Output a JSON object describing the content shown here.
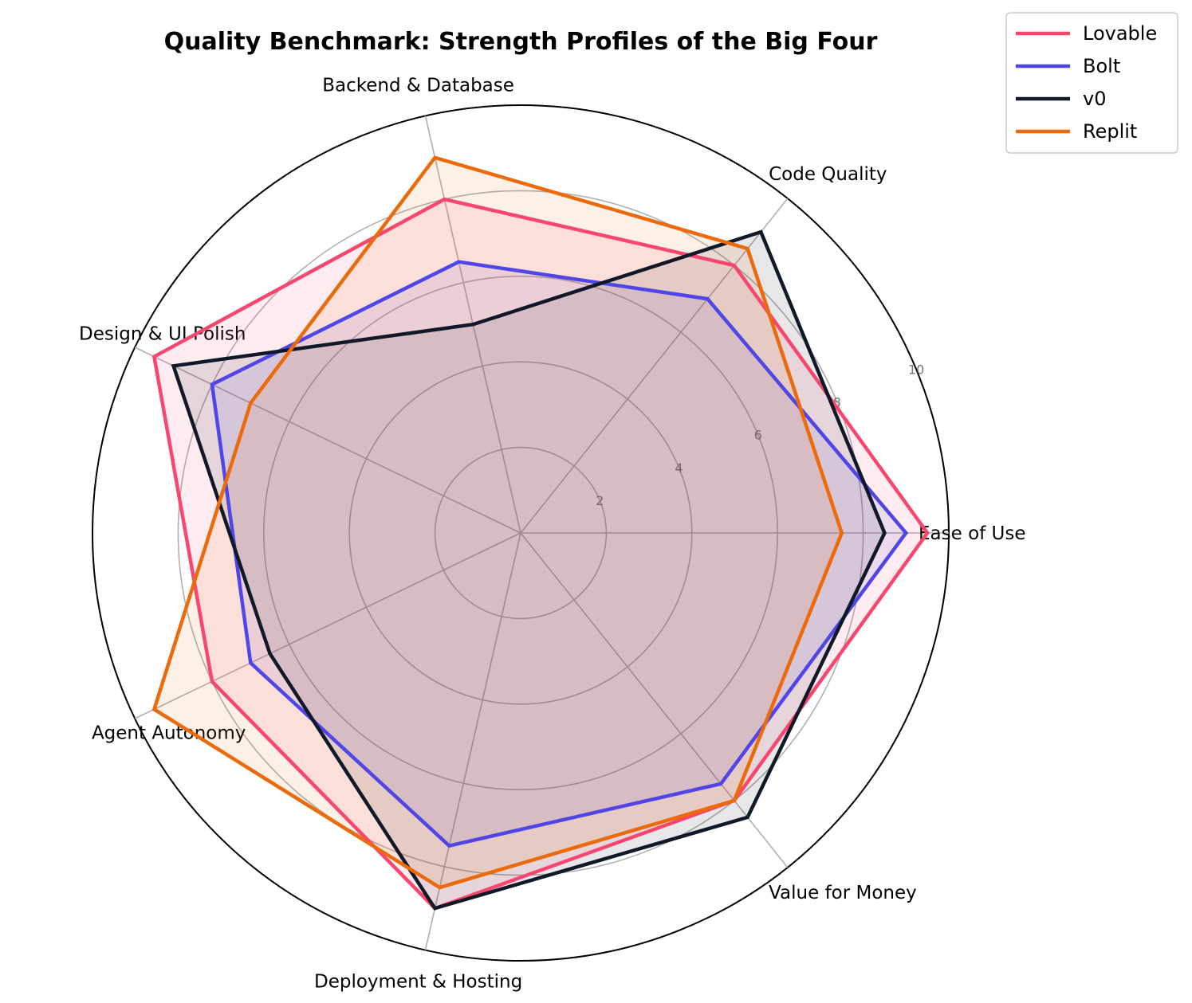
{
  "chart_data": {
    "type": "radar",
    "title": "Quality Benchmark: Strength Profiles of the Big Four",
    "axes": [
      "Ease of Use",
      "Code Quality",
      "Backend & Database",
      "Design & UI Polish",
      "Agent Autonomy",
      "Deployment & Hosting",
      "Value for Money"
    ],
    "r_range": [
      0,
      10
    ],
    "r_ticks": [
      "2",
      "4",
      "6",
      "8",
      "10"
    ],
    "grid": true,
    "legend_position": "top-right",
    "series": [
      {
        "name": "Lovable",
        "color": "#f7476f",
        "values": [
          9.5,
          8.0,
          8.0,
          9.5,
          8.0,
          9.0,
          8.0
        ]
      },
      {
        "name": "Bolt",
        "color": "#4f46e5",
        "values": [
          9.0,
          7.0,
          6.5,
          8.0,
          7.0,
          7.5,
          7.5
        ]
      },
      {
        "name": "v0",
        "color": "#111827",
        "values": [
          8.5,
          9.0,
          5.0,
          9.0,
          6.5,
          9.0,
          8.5
        ]
      },
      {
        "name": "Replit",
        "color": "#ea6a0c",
        "values": [
          7.5,
          8.5,
          9.0,
          7.0,
          9.5,
          8.5,
          8.0
        ]
      }
    ]
  }
}
